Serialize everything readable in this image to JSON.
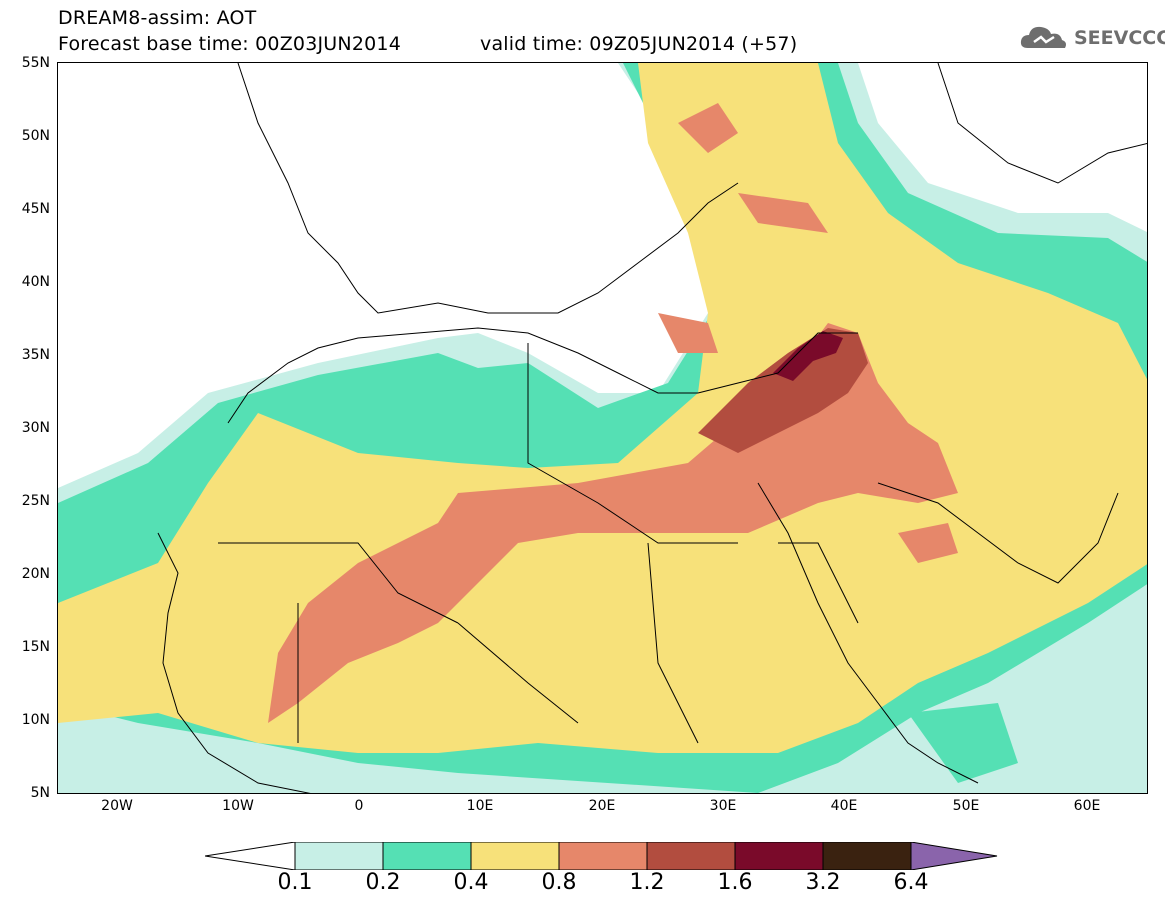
{
  "title": {
    "line1": "DREAM8-assim: AOT",
    "line2": "Forecast base time: 00Z03JUN2014",
    "valid": "valid time: 09Z05JUN2014 (+57)"
  },
  "logo": {
    "text": "SEEVCCC",
    "icon": "cloud-icon",
    "color": "#6e6e6e"
  },
  "axes": {
    "y_ticks": [
      "55N",
      "50N",
      "45N",
      "40N",
      "35N",
      "30N",
      "25N",
      "20N",
      "15N",
      "10N",
      "5N"
    ],
    "x_ticks": [
      "20W",
      "10W",
      "0",
      "10E",
      "20E",
      "30E",
      "40E",
      "50E",
      "60E"
    ]
  },
  "colorbar": {
    "labels": [
      "0.1",
      "0.2",
      "0.4",
      "0.8",
      "1.2",
      "1.6",
      "3.2",
      "6.4"
    ],
    "colors": [
      "#ffffff",
      "#c7efe6",
      "#55e0b4",
      "#f7e17a",
      "#e6876a",
      "#b24d3f",
      "#7a0a2a",
      "#3a2210",
      "#8a64ab"
    ]
  }
}
